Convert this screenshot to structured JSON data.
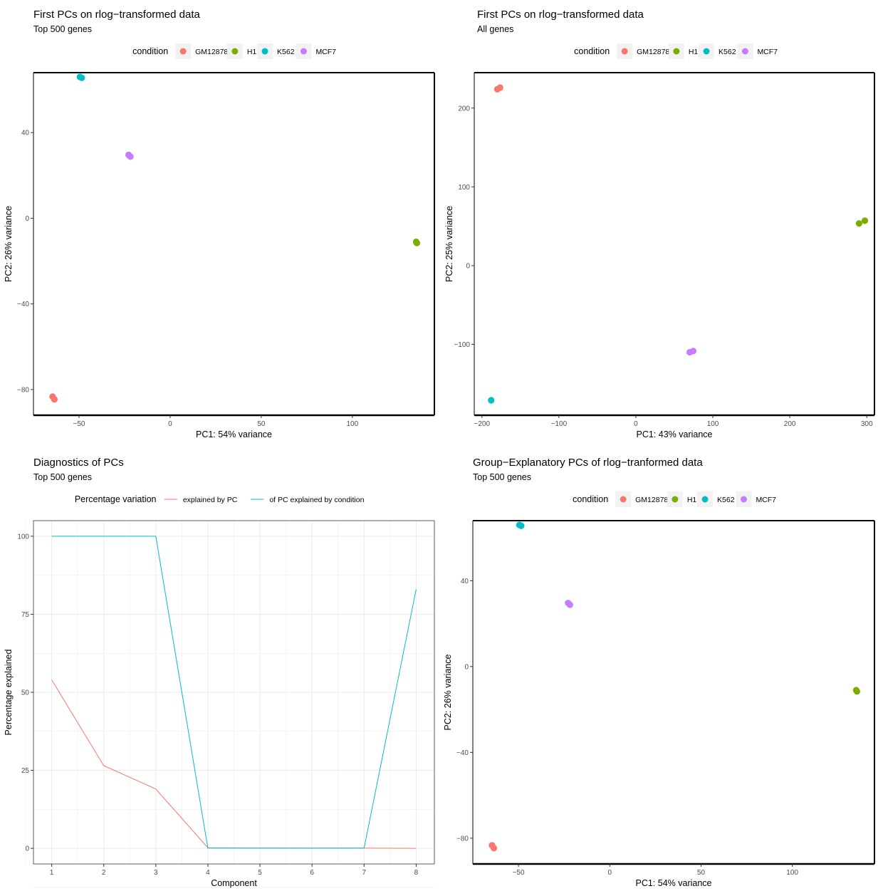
{
  "colors": {
    "GM12878": "#F8766D",
    "H1": "#7CAE00",
    "K562": "#00BFC4",
    "MCF7": "#C77CFF",
    "line_pc": "#F8766D",
    "line_cond": "#00BFC4",
    "grid": "#EBEBEB",
    "legend_key_bg": "#F2F2F2"
  },
  "chart_data": [
    {
      "id": "p1",
      "type": "scatter",
      "title": "First PCs on rlog−transformed data",
      "subtitle": "Top 500 genes",
      "legend": {
        "title": "condition",
        "entries": [
          "GM12878",
          "H1",
          "K562",
          "MCF7"
        ],
        "position": "top"
      },
      "xlabel": "PC1: 54% variance",
      "ylabel": "PC2: 26% variance",
      "xlim": [
        -75,
        145
      ],
      "ylim": [
        -92,
        68
      ],
      "xticks": [
        -50,
        0,
        50,
        100
      ],
      "yticks": [
        -80,
        -40,
        0,
        40
      ],
      "tick_labels_x": [
        "−50",
        "0",
        "50",
        "100"
      ],
      "tick_labels_y": [
        "−80",
        "−40",
        "0",
        "40"
      ],
      "points": [
        {
          "group": "GM12878",
          "x": -64.5,
          "y": -83.3
        },
        {
          "group": "GM12878",
          "x": -63.5,
          "y": -84.6
        },
        {
          "group": "K562",
          "x": -49.5,
          "y": 66.0
        },
        {
          "group": "K562",
          "x": -48.5,
          "y": 65.6
        },
        {
          "group": "MCF7",
          "x": -22.8,
          "y": 29.6
        },
        {
          "group": "MCF7",
          "x": -21.8,
          "y": 28.8
        },
        {
          "group": "H1",
          "x": 135.0,
          "y": -11.0
        },
        {
          "group": "H1",
          "x": 135.4,
          "y": -11.6
        }
      ]
    },
    {
      "id": "p2",
      "type": "scatter",
      "title": "First PCs on rlog−transformed data",
      "subtitle": "All genes",
      "legend": {
        "title": "condition",
        "entries": [
          "GM12878",
          "H1",
          "K562",
          "MCF7"
        ],
        "position": "top"
      },
      "xlabel": "PC1: 43% variance",
      "ylabel": "PC2: 25% variance",
      "xlim": [
        -210,
        310
      ],
      "ylim": [
        -190,
        245
      ],
      "xticks": [
        -200,
        -100,
        0,
        100,
        200,
        300
      ],
      "yticks": [
        -100,
        0,
        100,
        200
      ],
      "tick_labels_x": [
        "−200",
        "−100",
        "0",
        "100",
        "200",
        "300"
      ],
      "tick_labels_y": [
        "−100",
        "0",
        "100",
        "200"
      ],
      "points": [
        {
          "group": "GM12878",
          "x": -180.0,
          "y": 224.0
        },
        {
          "group": "GM12878",
          "x": -176.5,
          "y": 226.0
        },
        {
          "group": "K562",
          "x": -188.0,
          "y": -171.0
        },
        {
          "group": "MCF7",
          "x": 70.0,
          "y": -110.0
        },
        {
          "group": "MCF7",
          "x": 74.5,
          "y": -108.5
        },
        {
          "group": "H1",
          "x": 290.0,
          "y": 53.5
        },
        {
          "group": "H1",
          "x": 297.5,
          "y": 57.0
        }
      ]
    },
    {
      "id": "p3",
      "type": "line",
      "title": "Diagnostics of PCs",
      "subtitle": "Top 500 genes",
      "legend": {
        "title": "Percentage variation",
        "entries": [
          "explained by PC",
          "of PC explained by condition"
        ],
        "position": "top"
      },
      "xlabel": "Component",
      "ylabel": "Percentage explained",
      "x": [
        1,
        2,
        3,
        4,
        5,
        6,
        7,
        8
      ],
      "xlim": [
        0.65,
        8.35
      ],
      "ylim": [
        -5,
        105
      ],
      "xticks": [
        1,
        2,
        3,
        4,
        5,
        6,
        7,
        8
      ],
      "yticks": [
        0,
        25,
        50,
        75,
        100
      ],
      "tick_labels_x": [
        "1",
        "2",
        "3",
        "4",
        "5",
        "6",
        "7",
        "8"
      ],
      "tick_labels_y": [
        "0",
        "25",
        "50",
        "75",
        "100"
      ],
      "series": [
        {
          "name": "explained by PC",
          "values": [
            54,
            26.5,
            19,
            0.2,
            0.1,
            0.05,
            0.1,
            0
          ]
        },
        {
          "name": "of PC explained by condition",
          "values": [
            100,
            100,
            100,
            0.1,
            0.1,
            0.1,
            0.1,
            83
          ]
        }
      ]
    },
    {
      "id": "p4",
      "type": "scatter",
      "title": "Group−Explanatory PCs of rlog−tranformed data",
      "subtitle": "Top 500 genes",
      "legend": {
        "title": "condition",
        "entries": [
          "GM12878",
          "H1",
          "K562",
          "MCF7"
        ],
        "position": "top"
      },
      "xlabel": "PC1: 54% variance",
      "ylabel": "PC2: 26% variance",
      "xlim": [
        -75,
        145
      ],
      "ylim": [
        -92,
        68
      ],
      "xticks": [
        -50,
        0,
        50,
        100
      ],
      "yticks": [
        -80,
        -40,
        0,
        40
      ],
      "tick_labels_x": [
        "−50",
        "0",
        "50",
        "100"
      ],
      "tick_labels_y": [
        "−80",
        "−40",
        "0",
        "40"
      ],
      "points": [
        {
          "group": "GM12878",
          "x": -64.5,
          "y": -83.3
        },
        {
          "group": "GM12878",
          "x": -63.5,
          "y": -84.6
        },
        {
          "group": "K562",
          "x": -49.5,
          "y": 66.0
        },
        {
          "group": "K562",
          "x": -48.5,
          "y": 65.6
        },
        {
          "group": "MCF7",
          "x": -22.8,
          "y": 29.6
        },
        {
          "group": "MCF7",
          "x": -21.8,
          "y": 28.8
        },
        {
          "group": "H1",
          "x": 135.0,
          "y": -11.0
        },
        {
          "group": "H1",
          "x": 135.4,
          "y": -11.6
        }
      ]
    }
  ]
}
